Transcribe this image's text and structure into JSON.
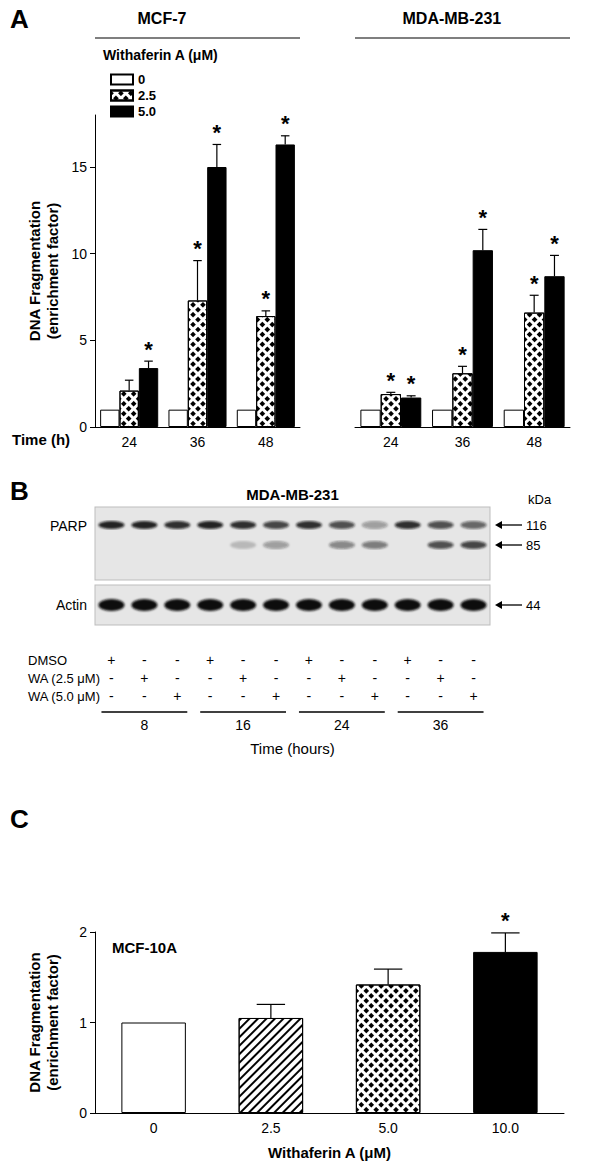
{
  "chart_data": [
    {
      "panel": "A",
      "type": "bar",
      "ylabel": [
        "DNA Fragmentation",
        "(enrichment factor)"
      ],
      "xlabel": "Time (h)",
      "legend_title": "Withaferin A (μM)",
      "legend": "upper left",
      "ylim": [
        0,
        18
      ],
      "yticks": [
        0,
        5,
        10,
        15
      ],
      "grid": false,
      "groups": [
        {
          "title": "MCF-7",
          "categories": [
            "24",
            "36",
            "48"
          ],
          "series": [
            {
              "name": "0",
              "color": "#ffffff",
              "values": [
                1,
                1,
                1
              ],
              "errors": [
                null,
                null,
                null
              ],
              "significance": [
                null,
                null,
                null
              ]
            },
            {
              "name": "2.5",
              "color": "#ffffff",
              "values": [
                2.1,
                7.3,
                6.4
              ],
              "errors": [
                0.6,
                2.3,
                0.3
              ],
              "significance": [
                null,
                "*",
                "*"
              ]
            },
            {
              "name": "5.0",
              "color": "#000000",
              "values": [
                3.4,
                15.0,
                16.3
              ],
              "errors": [
                0.4,
                1.3,
                0.5
              ],
              "significance": [
                "*",
                "*",
                "*"
              ]
            }
          ]
        },
        {
          "title": "MDA-MB-231",
          "categories": [
            "24",
            "36",
            "48"
          ],
          "series": [
            {
              "name": "0",
              "color": "#ffffff",
              "values": [
                1,
                1,
                1
              ],
              "errors": [
                null,
                null,
                null
              ],
              "significance": [
                null,
                null,
                null
              ]
            },
            {
              "name": "2.5",
              "color": "#ffffff",
              "values": [
                1.9,
                3.1,
                6.6
              ],
              "errors": [
                0.1,
                0.4,
                1.0
              ],
              "significance": [
                "*",
                "*",
                "*"
              ]
            },
            {
              "name": "5.0",
              "color": "#000000",
              "values": [
                1.7,
                10.2,
                8.7
              ],
              "errors": [
                0.1,
                1.2,
                1.2
              ],
              "significance": [
                "*",
                "*",
                "*"
              ]
            }
          ]
        }
      ]
    },
    {
      "panel": "C",
      "type": "bar",
      "annotations": [
        "MCF-10A"
      ],
      "ylabel": [
        "DNA Fragmentation",
        "(enrichment factor)"
      ],
      "xlabel": "Withaferin A (μM)",
      "categories": [
        "0",
        "2.5",
        "5.0",
        "10.0"
      ],
      "values": [
        1,
        1.05,
        1.42,
        1.78
      ],
      "errors": [
        null,
        0.15,
        0.17,
        0.21
      ],
      "significance": [
        null,
        null,
        null,
        "*"
      ],
      "colors": [
        "#ffffff",
        "#ffffff",
        "#ffffff",
        "#000000"
      ],
      "ylim": [
        0,
        2
      ],
      "yticks": [
        0,
        1,
        2
      ],
      "grid": false
    }
  ],
  "blot": {
    "panel": "B",
    "title": "MDA-MB-231",
    "unit": "kDa",
    "rows": [
      {
        "label": "PARP",
        "bands": [
          {
            "size": 116,
            "intensity": [
              0.9,
              0.9,
              0.85,
              0.9,
              0.85,
              0.75,
              0.85,
              0.7,
              0.35,
              0.85,
              0.7,
              0.6
            ]
          },
          {
            "size": 85,
            "intensity": [
              0,
              0,
              0,
              0,
              0.2,
              0.35,
              0,
              0.45,
              0.5,
              0,
              0.7,
              0.75
            ]
          }
        ]
      },
      {
        "label": "Actin",
        "bands": [
          {
            "size": 44,
            "intensity": [
              1,
              1,
              1,
              1,
              1,
              1,
              1,
              1,
              1,
              1,
              1,
              1
            ]
          }
        ]
      }
    ],
    "treatments": [
      {
        "label": "DMSO",
        "lanes": [
          "+",
          "-",
          "-",
          "+",
          "-",
          "-",
          "+",
          "-",
          "-",
          "+",
          "-",
          "-"
        ]
      },
      {
        "label": "WA (2.5 μM)",
        "lanes": [
          "-",
          "+",
          "-",
          "-",
          "+",
          "-",
          "-",
          "+",
          "-",
          "-",
          "+",
          "-"
        ]
      },
      {
        "label": "WA (5.0 μM)",
        "lanes": [
          "-",
          "-",
          "+",
          "-",
          "-",
          "+",
          "-",
          "-",
          "+",
          "-",
          "-",
          "+"
        ]
      }
    ],
    "times": [
      "8",
      "16",
      "24",
      "36"
    ],
    "time_label": "Time (hours)"
  }
}
